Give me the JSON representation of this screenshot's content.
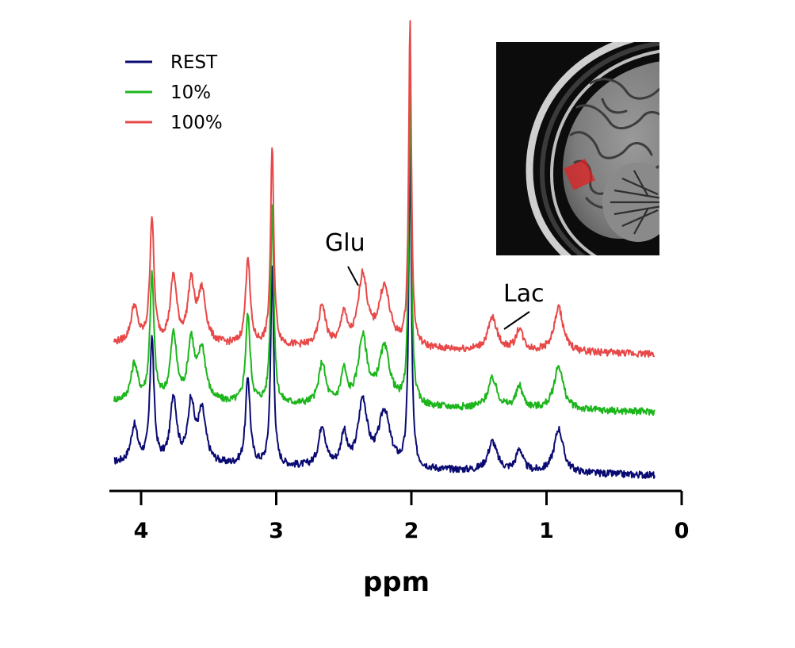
{
  "chart_data": {
    "type": "line",
    "xlabel": "ppm",
    "ylabel": "",
    "xlim": [
      4.2,
      0.2
    ],
    "x_reversed": true,
    "x_ticks": [
      "4",
      "3",
      "2",
      "1",
      "0"
    ],
    "grid": false,
    "legend_position": "top-left",
    "series": [
      {
        "name": "REST",
        "color": "#0a0a73",
        "baseline_start": 10,
        "baseline_end": 2,
        "noise": 1.2,
        "peaks": [
          {
            "x": 4.05,
            "h": 25,
            "w": 0.03
          },
          {
            "x": 3.92,
            "h": 85,
            "w": 0.018
          },
          {
            "x": 3.76,
            "h": 45,
            "w": 0.028
          },
          {
            "x": 3.63,
            "h": 40,
            "w": 0.028
          },
          {
            "x": 3.55,
            "h": 35,
            "w": 0.035
          },
          {
            "x": 3.21,
            "h": 60,
            "w": 0.02
          },
          {
            "x": 3.03,
            "h": 135,
            "w": 0.014
          },
          {
            "x": 2.66,
            "h": 28,
            "w": 0.03
          },
          {
            "x": 2.5,
            "h": 22,
            "w": 0.025
          },
          {
            "x": 2.36,
            "h": 45,
            "w": 0.04
          },
          {
            "x": 2.2,
            "h": 38,
            "w": 0.05
          },
          {
            "x": 2.01,
            "h": 220,
            "w": 0.012
          },
          {
            "x": 1.4,
            "h": 20,
            "w": 0.04
          },
          {
            "x": 1.2,
            "h": 15,
            "w": 0.03
          },
          {
            "x": 0.91,
            "h": 30,
            "w": 0.04
          }
        ]
      },
      {
        "name": "10%",
        "color": "#1cb61c",
        "baseline_start": 10,
        "baseline_end": 3,
        "noise": 1.2,
        "peaks": [
          {
            "x": 4.05,
            "h": 25,
            "w": 0.03
          },
          {
            "x": 3.92,
            "h": 85,
            "w": 0.018
          },
          {
            "x": 3.76,
            "h": 45,
            "w": 0.028
          },
          {
            "x": 3.63,
            "h": 40,
            "w": 0.028
          },
          {
            "x": 3.55,
            "h": 35,
            "w": 0.035
          },
          {
            "x": 3.21,
            "h": 60,
            "w": 0.02
          },
          {
            "x": 3.03,
            "h": 135,
            "w": 0.014
          },
          {
            "x": 2.66,
            "h": 28,
            "w": 0.03
          },
          {
            "x": 2.5,
            "h": 22,
            "w": 0.025
          },
          {
            "x": 2.36,
            "h": 45,
            "w": 0.04
          },
          {
            "x": 2.2,
            "h": 38,
            "w": 0.05
          },
          {
            "x": 2.01,
            "h": 220,
            "w": 0.012
          },
          {
            "x": 1.4,
            "h": 20,
            "w": 0.04
          },
          {
            "x": 1.2,
            "h": 15,
            "w": 0.03
          },
          {
            "x": 0.91,
            "h": 30,
            "w": 0.04
          }
        ]
      },
      {
        "name": "100%",
        "color": "#e84848",
        "baseline_start": 10,
        "baseline_end": 3,
        "noise": 1.2,
        "peaks": [
          {
            "x": 4.05,
            "h": 25,
            "w": 0.03
          },
          {
            "x": 3.92,
            "h": 85,
            "w": 0.018
          },
          {
            "x": 3.76,
            "h": 45,
            "w": 0.028
          },
          {
            "x": 3.63,
            "h": 40,
            "w": 0.028
          },
          {
            "x": 3.55,
            "h": 35,
            "w": 0.035
          },
          {
            "x": 3.21,
            "h": 60,
            "w": 0.02
          },
          {
            "x": 3.03,
            "h": 135,
            "w": 0.014
          },
          {
            "x": 2.66,
            "h": 28,
            "w": 0.03
          },
          {
            "x": 2.5,
            "h": 22,
            "w": 0.025
          },
          {
            "x": 2.36,
            "h": 48,
            "w": 0.04
          },
          {
            "x": 2.2,
            "h": 40,
            "w": 0.05
          },
          {
            "x": 2.01,
            "h": 220,
            "w": 0.012
          },
          {
            "x": 1.4,
            "h": 22,
            "w": 0.04
          },
          {
            "x": 1.2,
            "h": 15,
            "w": 0.03
          },
          {
            "x": 0.91,
            "h": 30,
            "w": 0.04
          }
        ]
      }
    ],
    "annotations": [
      {
        "label": "Glu",
        "x": 2.37
      },
      {
        "label": "Lac",
        "x": 1.33
      }
    ]
  },
  "inset": {
    "icon": "brain-mri-sagittal-icon",
    "voxel_color": "#e02020"
  }
}
